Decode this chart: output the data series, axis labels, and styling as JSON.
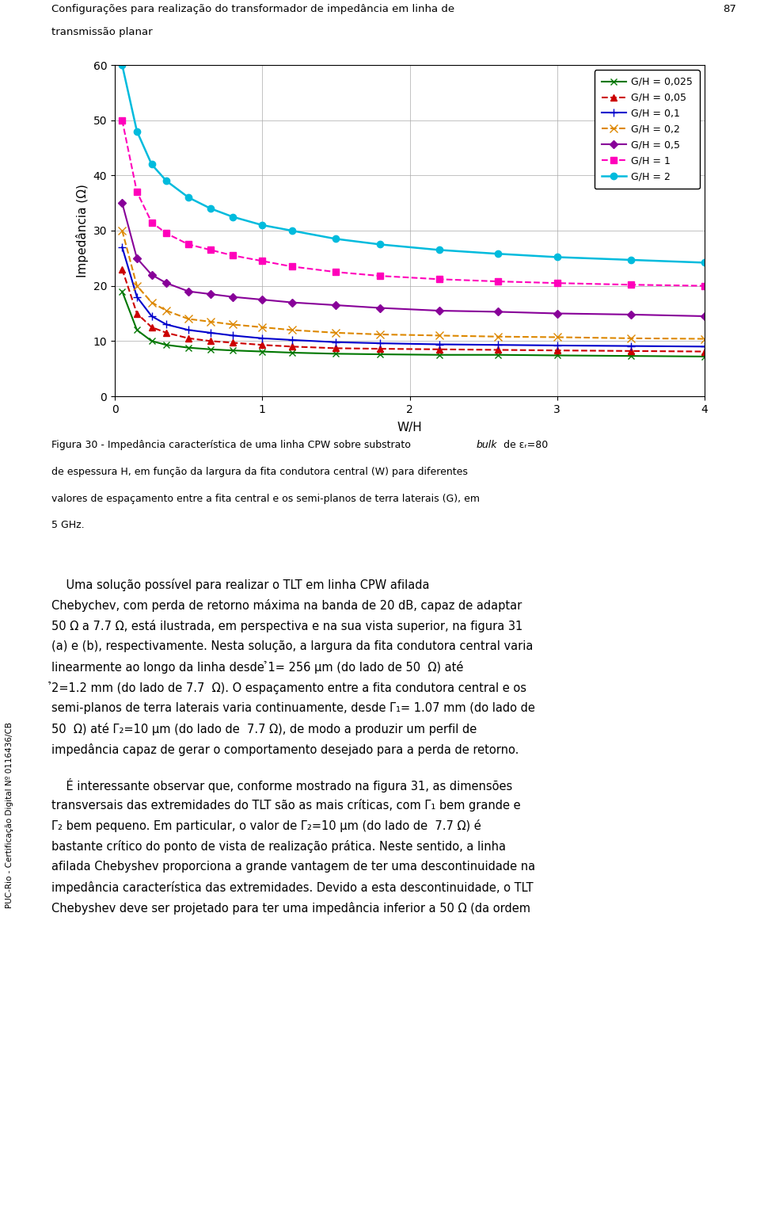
{
  "header_text1": "Configurações para realização do transformador de impedância em linha de",
  "header_text2": "transmissão planar",
  "header_page": "87",
  "xlabel": "W/H",
  "ylabel": "Impedância (Ω)",
  "xlim": [
    0,
    4
  ],
  "ylim": [
    0,
    60
  ],
  "xticks": [
    0,
    1,
    2,
    3,
    4
  ],
  "yticks": [
    0,
    10,
    20,
    30,
    40,
    50,
    60
  ],
  "series": [
    {
      "label": "G/H = 0,025",
      "color": "#007700",
      "linestyle": "-",
      "marker": "x",
      "markersize": 6,
      "linewidth": 1.5,
      "x": [
        0.05,
        0.15,
        0.25,
        0.35,
        0.5,
        0.65,
        0.8,
        1.0,
        1.2,
        1.5,
        1.8,
        2.2,
        2.6,
        3.0,
        3.5,
        4.0
      ],
      "y": [
        19.0,
        12.0,
        10.0,
        9.3,
        8.8,
        8.5,
        8.3,
        8.1,
        7.9,
        7.7,
        7.6,
        7.5,
        7.5,
        7.4,
        7.3,
        7.2
      ]
    },
    {
      "label": "G/H = 0,05",
      "color": "#cc0000",
      "linestyle": "--",
      "marker": "^",
      "markersize": 6,
      "linewidth": 1.5,
      "x": [
        0.05,
        0.15,
        0.25,
        0.35,
        0.5,
        0.65,
        0.8,
        1.0,
        1.2,
        1.5,
        1.8,
        2.2,
        2.6,
        3.0,
        3.5,
        4.0
      ],
      "y": [
        23.0,
        15.0,
        12.5,
        11.5,
        10.5,
        10.0,
        9.7,
        9.3,
        9.0,
        8.7,
        8.6,
        8.5,
        8.4,
        8.3,
        8.2,
        8.1
      ]
    },
    {
      "label": "G/H = 0,1",
      "color": "#0000cc",
      "linestyle": "-",
      "marker": "+",
      "markersize": 7,
      "linewidth": 1.5,
      "x": [
        0.05,
        0.15,
        0.25,
        0.35,
        0.5,
        0.65,
        0.8,
        1.0,
        1.2,
        1.5,
        1.8,
        2.2,
        2.6,
        3.0,
        3.5,
        4.0
      ],
      "y": [
        27.0,
        18.0,
        14.5,
        13.0,
        12.0,
        11.5,
        11.0,
        10.5,
        10.2,
        9.8,
        9.6,
        9.4,
        9.3,
        9.2,
        9.1,
        9.0
      ]
    },
    {
      "label": "G/H = 0,2",
      "color": "#dd8800",
      "linestyle": "--",
      "marker": "x",
      "markersize": 7,
      "linewidth": 1.5,
      "x": [
        0.05,
        0.15,
        0.25,
        0.35,
        0.5,
        0.65,
        0.8,
        1.0,
        1.2,
        1.5,
        1.8,
        2.2,
        2.6,
        3.0,
        3.5,
        4.0
      ],
      "y": [
        30.0,
        20.0,
        17.0,
        15.5,
        14.0,
        13.5,
        13.0,
        12.5,
        12.0,
        11.5,
        11.2,
        11.0,
        10.8,
        10.7,
        10.5,
        10.4
      ]
    },
    {
      "label": "G/H = 0,5",
      "color": "#880099",
      "linestyle": "-",
      "marker": "D",
      "markersize": 5,
      "linewidth": 1.5,
      "x": [
        0.05,
        0.15,
        0.25,
        0.35,
        0.5,
        0.65,
        0.8,
        1.0,
        1.2,
        1.5,
        1.8,
        2.2,
        2.6,
        3.0,
        3.5,
        4.0
      ],
      "y": [
        35.0,
        25.0,
        22.0,
        20.5,
        19.0,
        18.5,
        18.0,
        17.5,
        17.0,
        16.5,
        16.0,
        15.5,
        15.3,
        15.0,
        14.8,
        14.5
      ]
    },
    {
      "label": "G/H = 1",
      "color": "#ff00bb",
      "linestyle": "--",
      "marker": "s",
      "markersize": 6,
      "linewidth": 1.5,
      "x": [
        0.05,
        0.15,
        0.25,
        0.35,
        0.5,
        0.65,
        0.8,
        1.0,
        1.2,
        1.5,
        1.8,
        2.2,
        2.6,
        3.0,
        3.5,
        4.0
      ],
      "y": [
        50.0,
        37.0,
        31.5,
        29.5,
        27.5,
        26.5,
        25.5,
        24.5,
        23.5,
        22.5,
        21.8,
        21.2,
        20.8,
        20.5,
        20.2,
        20.0
      ]
    },
    {
      "label": "G/H = 2",
      "color": "#00bbdd",
      "linestyle": "-",
      "marker": "o",
      "markersize": 6,
      "linewidth": 1.8,
      "x": [
        0.05,
        0.15,
        0.25,
        0.35,
        0.5,
        0.65,
        0.8,
        1.0,
        1.2,
        1.5,
        1.8,
        2.2,
        2.6,
        3.0,
        3.5,
        4.0
      ],
      "y": [
        60.0,
        48.0,
        42.0,
        39.0,
        36.0,
        34.0,
        32.5,
        31.0,
        30.0,
        28.5,
        27.5,
        26.5,
        25.8,
        25.2,
        24.7,
        24.2
      ]
    }
  ],
  "sidebar_text": "PUC-Rio - Certificação Digital Nº 0116436/CB",
  "figure_size": [
    9.6,
    15.23
  ],
  "dpi": 100
}
